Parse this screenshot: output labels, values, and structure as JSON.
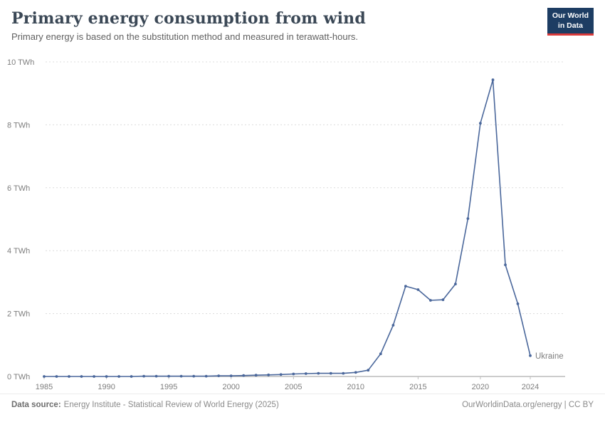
{
  "header": {
    "title": "Primary energy consumption from wind",
    "subtitle": "Primary energy is based on the substitution method and measured in terawatt-hours.",
    "logo": {
      "line1": "Our World",
      "line2": "in Data",
      "bg_color": "#1d3d63",
      "accent_color": "#d93a3a"
    }
  },
  "chart_data": {
    "type": "line",
    "title": "Primary energy consumption from wind",
    "xlabel": "",
    "ylabel": "TWh",
    "ylim": [
      0,
      10
    ],
    "yticks": [
      0,
      2,
      4,
      6,
      8,
      10
    ],
    "ytick_labels": [
      "0 TWh",
      "2 TWh",
      "4 TWh",
      "6 TWh",
      "8 TWh",
      "10 TWh"
    ],
    "xticks": [
      1985,
      1990,
      1995,
      2000,
      2005,
      2010,
      2015,
      2020,
      2024
    ],
    "grid": "dashed-horizontal",
    "legend_position": "end-of-line",
    "series": [
      {
        "name": "Ukraine",
        "color": "#4a679b",
        "x": [
          1985,
          1986,
          1987,
          1988,
          1989,
          1990,
          1991,
          1992,
          1993,
          1994,
          1995,
          1996,
          1997,
          1998,
          1999,
          2000,
          2001,
          2002,
          2003,
          2004,
          2005,
          2006,
          2007,
          2008,
          2009,
          2010,
          2011,
          2012,
          2013,
          2014,
          2015,
          2016,
          2017,
          2018,
          2019,
          2020,
          2021,
          2022,
          2023,
          2024
        ],
        "values": [
          0.0,
          0.0,
          0.0,
          0.0,
          0.0,
          0.0,
          0.0,
          0.0,
          0.01,
          0.01,
          0.01,
          0.01,
          0.01,
          0.01,
          0.02,
          0.02,
          0.03,
          0.04,
          0.05,
          0.06,
          0.08,
          0.09,
          0.1,
          0.1,
          0.1,
          0.13,
          0.2,
          0.72,
          1.63,
          2.87,
          2.76,
          2.42,
          2.44,
          2.94,
          5.02,
          8.05,
          9.43,
          3.55,
          2.31,
          0.66
        ]
      }
    ]
  },
  "footer": {
    "source_label": "Data source:",
    "source_text": "Energy Institute - Statistical Review of World Energy (2025)",
    "credit": "OurWorldinData.org/energy | CC BY"
  }
}
